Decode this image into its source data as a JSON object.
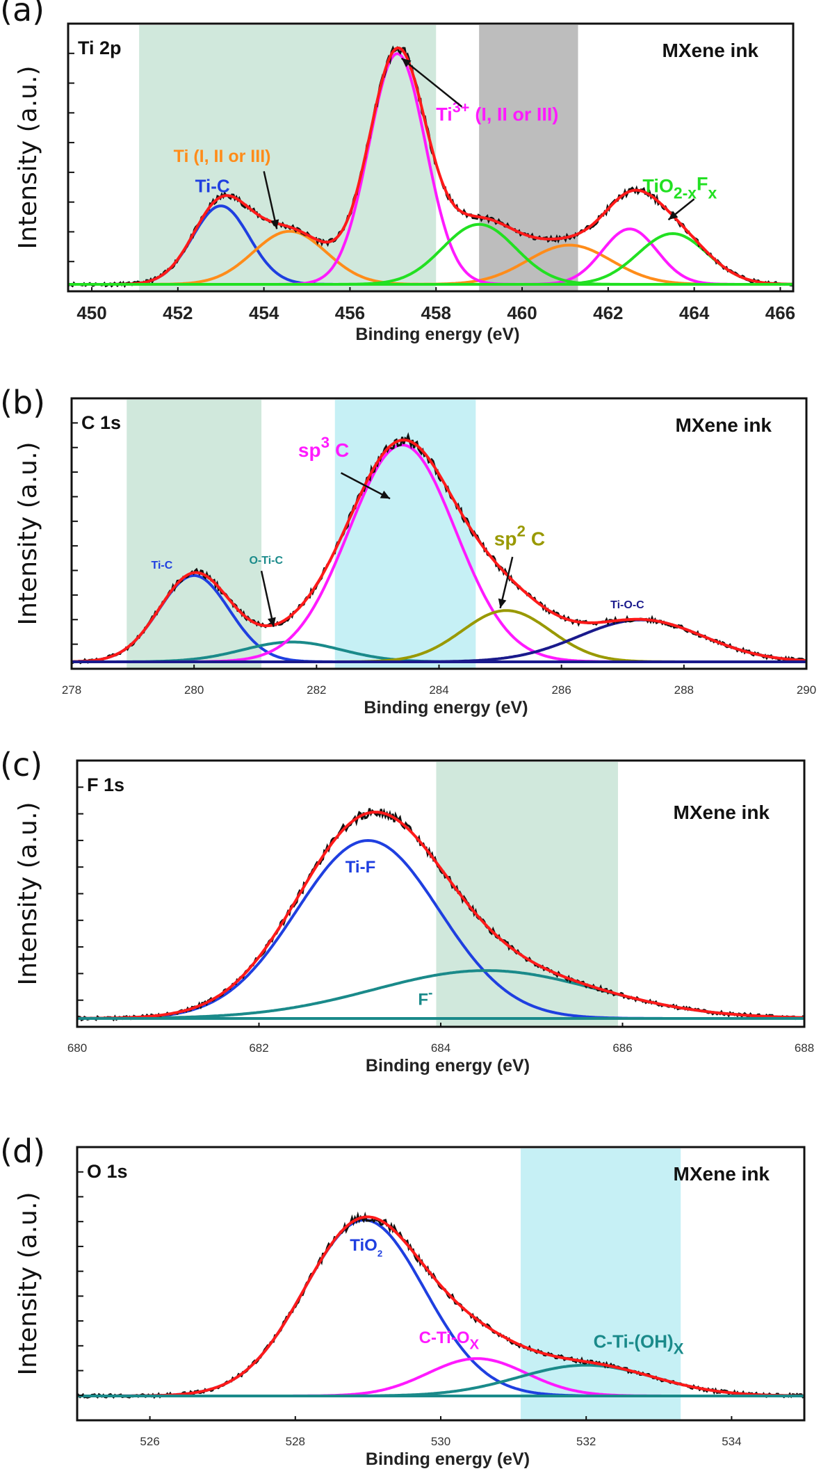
{
  "chart_data": [
    {
      "type": "line",
      "panel_label": "(a)",
      "title": "Ti 2p",
      "sample_label": "MXene ink",
      "xlabel": "Binding energy (eV)",
      "ylabel": "Intensity (a.u.)",
      "xlim": [
        449.45,
        466.3
      ],
      "ylim": [
        0,
        1.05
      ],
      "xticks": [
        450,
        452,
        454,
        456,
        458,
        460,
        462,
        464,
        466
      ],
      "xtick_style": "large",
      "ytick_count": 8,
      "shaded_regions": [
        {
          "from": 451.1,
          "to": 458.0,
          "color": "#d0e8dc"
        },
        {
          "from": 459.0,
          "to": 461.3,
          "color": "#bdbdbd"
        }
      ],
      "raw_color": "#111111",
      "envelope_color": "#ff1a1a",
      "components": [
        {
          "name": "Ti-C",
          "color": "#1f3fe0",
          "peaks": [
            {
              "center": 453.0,
              "height": 0.34,
              "fwhm": 1.55
            }
          ]
        },
        {
          "name": "Ti (I, II or III)",
          "color": "#ff8c1a",
          "peaks": [
            {
              "center": 454.6,
              "height": 0.23,
              "fwhm": 2.0
            },
            {
              "center": 461.1,
              "height": 0.17,
              "fwhm": 2.3
            }
          ]
        },
        {
          "name": "Ti3+ (I, II or III)",
          "color": "#ff1aff",
          "peaks": [
            {
              "center": 457.1,
              "height": 1.0,
              "fwhm": 1.55
            },
            {
              "center": 462.5,
              "height": 0.24,
              "fwhm": 1.5
            }
          ]
        },
        {
          "name": "TiO2-xFx",
          "color": "#22e022",
          "peaks": [
            {
              "center": 459.0,
              "height": 0.26,
              "fwhm": 2.0
            },
            {
              "center": 463.5,
              "height": 0.22,
              "fwhm": 1.9
            }
          ]
        }
      ],
      "annotations": [
        {
          "text": "Ti-C",
          "color": "#1f3fe0",
          "x": 452.4,
          "y": 0.4,
          "size": 26
        },
        {
          "text": "Ti (I, II or III)",
          "color": "#ff8c1a",
          "x": 451.9,
          "y": 0.53,
          "size": 25
        },
        {
          "text": "Ti",
          "sup": "3+",
          "rest": "(I, II or III)",
          "color": "#ff1aff",
          "x": 458.0,
          "y": 0.71,
          "size": 27
        },
        {
          "text": "TiO",
          "sub": "2-x",
          "mid": "F",
          "sub2": "x",
          "color": "#22e022",
          "x": 462.8,
          "y": 0.4,
          "size": 27
        }
      ],
      "arrows": [
        {
          "from": [
            454.0,
            0.49
          ],
          "to": [
            454.3,
            0.24
          ]
        },
        {
          "from": [
            458.6,
            0.77
          ],
          "to": [
            457.2,
            0.98
          ]
        },
        {
          "from": [
            464.0,
            0.37
          ],
          "to": [
            463.4,
            0.28
          ]
        }
      ]
    },
    {
      "type": "line",
      "panel_label": "(b)",
      "title": "C 1s",
      "sample_label": "MXene ink",
      "xlabel": "Binding energy (eV)",
      "ylabel": "Intensity (a.u.)",
      "xlim": [
        278,
        290
      ],
      "ylim": [
        0,
        1.05
      ],
      "xticks": [
        278,
        280,
        282,
        284,
        286,
        288,
        290
      ],
      "xtick_style": "small",
      "ytick_count": 10,
      "shaded_regions": [
        {
          "from": 278.9,
          "to": 281.1,
          "color": "#d0e8dc"
        },
        {
          "from": 282.3,
          "to": 284.6,
          "color": "#c6f0f5"
        }
      ],
      "raw_color": "#111111",
      "envelope_color": "#ff1a1a",
      "components": [
        {
          "name": "Ti-C",
          "color": "#1f3fe0",
          "peaks": [
            {
              "center": 280.0,
              "height": 0.37,
              "fwhm": 1.35
            }
          ]
        },
        {
          "name": "O-Ti-C",
          "color": "#1a8a8a",
          "peaks": [
            {
              "center": 281.6,
              "height": 0.085,
              "fwhm": 1.9
            }
          ]
        },
        {
          "name": "sp3 C",
          "color": "#ff1aff",
          "peaks": [
            {
              "center": 283.4,
              "height": 0.93,
              "fwhm": 2.05
            }
          ]
        },
        {
          "name": "sp2 C",
          "color": "#999900",
          "peaks": [
            {
              "center": 285.1,
              "height": 0.22,
              "fwhm": 1.7
            }
          ]
        },
        {
          "name": "Ti-O-C",
          "color": "#1a1a8c",
          "peaks": [
            {
              "center": 287.3,
              "height": 0.18,
              "fwhm": 2.4
            }
          ]
        }
      ],
      "annotations": [
        {
          "text": "Ti-C",
          "color": "#1f3fe0",
          "x": 279.3,
          "y": 0.4,
          "size": 16
        },
        {
          "text": "O-Ti-C",
          "color": "#1a8a8a",
          "x": 280.9,
          "y": 0.42,
          "size": 16
        },
        {
          "text": "sp",
          "sup": "3",
          "rest": "C",
          "color": "#ff1aff",
          "x": 281.7,
          "y": 0.88,
          "size": 28
        },
        {
          "text": "sp",
          "sup": "2",
          "rest": "C",
          "color": "#999900",
          "x": 284.9,
          "y": 0.5,
          "size": 28
        },
        {
          "text": "Ti-O-C",
          "color": "#1a1a8c",
          "x": 286.8,
          "y": 0.23,
          "size": 16
        }
      ],
      "arrows": [
        {
          "from": [
            281.1,
            0.39
          ],
          "to": [
            281.3,
            0.15
          ]
        },
        {
          "from": [
            282.4,
            0.81
          ],
          "to": [
            283.2,
            0.7
          ]
        },
        {
          "from": [
            285.2,
            0.45
          ],
          "to": [
            285.0,
            0.23
          ]
        }
      ]
    },
    {
      "type": "line",
      "panel_label": "(c)",
      "title": "F 1s",
      "sample_label": "MXene ink",
      "xlabel": "Binding energy (eV)",
      "ylabel": "Intensity (a.u.)",
      "xlim": [
        680,
        688
      ],
      "ylim": [
        0,
        1.05
      ],
      "xticks": [
        680,
        682,
        684,
        686,
        688
      ],
      "xtick_style": "small",
      "ytick_count": 9,
      "shaded_regions": [
        {
          "from": 683.95,
          "to": 685.95,
          "color": "#d0e8dc"
        }
      ],
      "raw_color": "#111111",
      "envelope_color": "#ff1a1a",
      "components": [
        {
          "name": "Ti-F",
          "color": "#1f3fe0",
          "peaks": [
            {
              "center": 683.2,
              "height": 0.78,
              "fwhm": 1.85
            }
          ]
        },
        {
          "name": "F-",
          "color": "#1a8a8a",
          "peaks": [
            {
              "center": 684.5,
              "height": 0.21,
              "fwhm": 2.9
            }
          ]
        }
      ],
      "annotations": [
        {
          "text": "Ti-F",
          "color": "#1f3fe0",
          "x": 682.95,
          "y": 0.64,
          "size": 24
        },
        {
          "text": "F",
          "sup": "-",
          "rest": "",
          "color": "#1a8a8a",
          "x": 683.75,
          "y": 0.06,
          "size": 24
        }
      ],
      "arrows": []
    },
    {
      "type": "line",
      "panel_label": "(d)",
      "title": "O 1s",
      "sample_label": "MXene ink",
      "xlabel": "Binding energy (eV)",
      "ylabel": "Intensity (a.u.)",
      "xlim": [
        525,
        535
      ],
      "ylim": [
        0,
        1.05
      ],
      "xticks": [
        526,
        528,
        530,
        532,
        534
      ],
      "xtick_style": "small",
      "ytick_count": 10,
      "shaded_regions": [
        {
          "from": 531.1,
          "to": 533.3,
          "color": "#c6f0f5"
        }
      ],
      "raw_color": "#111111",
      "envelope_color": "#ff1a1a",
      "components": [
        {
          "name": "TiO2",
          "color": "#1f3fe0",
          "peaks": [
            {
              "center": 528.95,
              "height": 0.8,
              "fwhm": 1.95
            }
          ]
        },
        {
          "name": "C-Ti-Ox",
          "color": "#ff1aff",
          "peaks": [
            {
              "center": 530.5,
              "height": 0.17,
              "fwhm": 1.6
            }
          ]
        },
        {
          "name": "C-Ti-(OH)x",
          "color": "#1a8a8a",
          "peaks": [
            {
              "center": 532.0,
              "height": 0.14,
              "fwhm": 2.2
            }
          ]
        }
      ],
      "annotations": [
        {
          "text": "TiO",
          "sub": "2",
          "color": "#1f3fe0",
          "x": 528.75,
          "y": 0.66,
          "size": 24
        },
        {
          "text": "C-Ti-O",
          "sub": "X",
          "color": "#ff1aff",
          "x": 529.7,
          "y": 0.24,
          "size": 24
        },
        {
          "text": "C-Ti-(OH)",
          "sub": "X",
          "color": "#1a8a8a",
          "x": 532.1,
          "y": 0.22,
          "size": 26
        }
      ],
      "arrows": []
    }
  ]
}
